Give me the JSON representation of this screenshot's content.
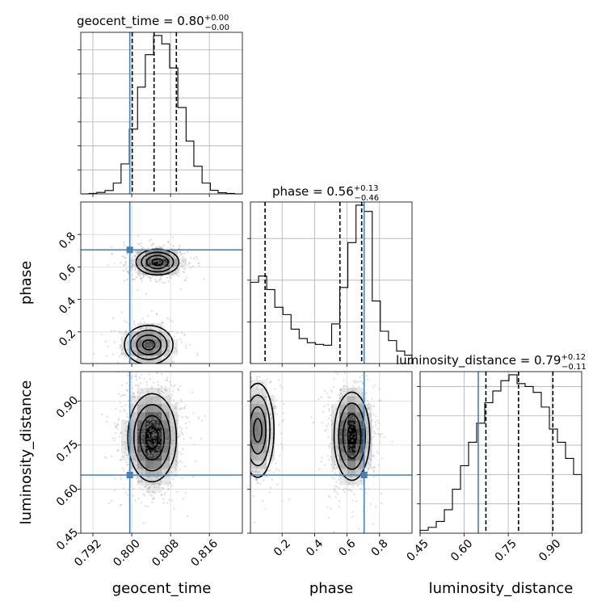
{
  "chart_data": {
    "type": "corner",
    "parameters": [
      "geocent_time",
      "phase",
      "luminosity_distance"
    ],
    "truths": {
      "geocent_time": 0.7996,
      "phase": 0.705,
      "luminosity_distance": 0.648
    },
    "axes": {
      "geocent_time": {
        "range": [
          0.7895,
          0.8228
        ],
        "ticks": [
          0.792,
          0.8,
          0.808,
          0.816
        ],
        "tick_labels": [
          "0.792",
          "0.800",
          "0.808",
          "0.816"
        ]
      },
      "phase": {
        "range": [
          0.005,
          1.0
        ],
        "ticks": [
          0.2,
          0.4,
          0.6,
          0.8
        ],
        "tick_labels": [
          "0.2",
          "0.4",
          "0.6",
          "0.8"
        ]
      },
      "luminosity_distance": {
        "range": [
          0.45,
          1.0
        ],
        "ticks": [
          0.45,
          0.6,
          0.75,
          0.9
        ],
        "tick_labels": [
          "0.45",
          "0.60",
          "0.75",
          "0.90"
        ]
      }
    },
    "titles": [
      {
        "param": "geocent_time",
        "text": "geocent_time = 0.80",
        "sup": "+0.00",
        "sub": "−0.00"
      },
      {
        "param": "phase",
        "text": "phase = 0.56",
        "sup": "+0.13",
        "sub": "−0.46"
      },
      {
        "param": "luminosity_distance",
        "text": "luminosity_distance = 0.79",
        "sup": "+0.12",
        "sub": "−0.11"
      }
    ],
    "histograms": {
      "geocent_time": {
        "bins": [
          0.7895,
          0.7912,
          0.7928,
          0.7945,
          0.7962,
          0.7978,
          0.7995,
          0.8012,
          0.8028,
          0.8045,
          0.8062,
          0.8078,
          0.8095,
          0.8112,
          0.8128,
          0.8145,
          0.8162,
          0.8178,
          0.8195,
          0.8212,
          0.8228
        ],
        "counts": [
          0,
          2,
          6,
          14,
          45,
          125,
          270,
          445,
          580,
          660,
          625,
          525,
          360,
          220,
          115,
          45,
          15,
          5,
          2,
          0
        ],
        "quantiles": [
          0.8001,
          0.8046,
          0.8092
        ]
      },
      "phase": {
        "bins": [
          0.005,
          0.055,
          0.105,
          0.155,
          0.205,
          0.255,
          0.305,
          0.355,
          0.405,
          0.455,
          0.505,
          0.555,
          0.605,
          0.655,
          0.705,
          0.755,
          0.805,
          0.855,
          0.905,
          0.955,
          1.0
        ],
        "counts": [
          390,
          420,
          355,
          270,
          235,
          165,
          120,
          100,
          92,
          88,
          190,
          365,
          580,
          760,
          730,
          300,
          155,
          110,
          60,
          40
        ],
        "quantiles": [
          0.095,
          0.556,
          0.69
        ]
      },
      "luminosity_distance": {
        "bins": [
          0.45,
          0.4775,
          0.505,
          0.5325,
          0.56,
          0.5875,
          0.615,
          0.6425,
          0.67,
          0.6975,
          0.725,
          0.7525,
          0.78,
          0.8075,
          0.835,
          0.8625,
          0.89,
          0.9175,
          0.945,
          0.9725,
          1.0
        ],
        "counts": [
          10,
          20,
          40,
          80,
          150,
          230,
          310,
          375,
          445,
          485,
          520,
          540,
          510,
          500,
          480,
          430,
          355,
          310,
          255,
          200
        ],
        "quantiles": [
          0.674,
          0.785,
          0.902
        ]
      }
    },
    "pairs": [
      {
        "x": "geocent_time",
        "y": "phase",
        "peaks": [
          {
            "x": 0.8053,
            "y": 0.63,
            "sx": 0.0022,
            "sy": 0.04,
            "w": 0.6
          },
          {
            "x": 0.8035,
            "y": 0.12,
            "sx": 0.0025,
            "sy": 0.06,
            "w": 0.4
          }
        ]
      },
      {
        "x": "geocent_time",
        "y": "luminosity_distance",
        "peaks": [
          {
            "x": 0.8042,
            "y": 0.775,
            "sx": 0.0025,
            "sy": 0.075,
            "w": 1.0
          }
        ]
      },
      {
        "x": "phase",
        "y": "luminosity_distance",
        "peaks": [
          {
            "x": 0.63,
            "y": 0.78,
            "sx": 0.055,
            "sy": 0.075,
            "w": 0.65
          },
          {
            "x": 0.05,
            "y": 0.8,
            "sx": 0.05,
            "sy": 0.08,
            "w": 0.35
          }
        ]
      }
    ]
  }
}
